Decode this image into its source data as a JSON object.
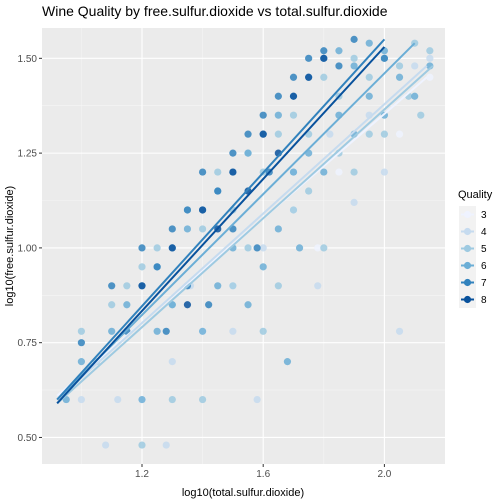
{
  "chart_data": {
    "type": "scatter",
    "title": "Wine Quality by free.sulfur.dioxide vs total.sulfur.dioxide",
    "xlabel": "log10(total.sulfur.dioxide)",
    "ylabel": "log10(free.sulfur.dioxide)",
    "xlim": [
      0.87,
      2.2
    ],
    "ylim": [
      0.43,
      1.58
    ],
    "x_ticks": [
      1.2,
      1.6,
      2.0
    ],
    "x_tick_labels": [
      "1.2",
      "1.6",
      "2.0"
    ],
    "y_ticks": [
      0.5,
      0.75,
      1.0,
      1.25,
      1.5
    ],
    "y_tick_labels": [
      "0.50",
      "0.75",
      "1.00",
      "1.25",
      "1.50"
    ],
    "grid": true,
    "legend": {
      "title": "Quality",
      "placement": "right",
      "entries": [
        "3",
        "4",
        "5",
        "6",
        "7",
        "8"
      ]
    },
    "series": [
      {
        "name": "3",
        "color": "#eff3ff",
        "points": [
          [
            1.2,
            0.6
          ],
          [
            1.5,
            0.9
          ],
          [
            1.7,
            1.1
          ],
          [
            1.85,
            1.2
          ],
          [
            2.05,
            1.3
          ],
          [
            2.15,
            1.45
          ],
          [
            1.78,
            1.0
          ],
          [
            1.4,
            0.78
          ]
        ],
        "trend": [
          [
            0.92,
            0.61
          ],
          [
            2.14,
            1.45
          ]
        ]
      },
      {
        "name": "4",
        "color": "#c6dbef",
        "points": [
          [
            1.0,
            0.6
          ],
          [
            1.08,
            0.48
          ],
          [
            1.12,
            0.6
          ],
          [
            1.3,
            0.7
          ],
          [
            1.36,
            0.9
          ],
          [
            1.5,
            0.78
          ],
          [
            1.6,
            1.0
          ],
          [
            1.7,
            1.2
          ],
          [
            1.78,
            0.9
          ],
          [
            1.82,
            1.3
          ],
          [
            1.9,
            1.12
          ],
          [
            1.95,
            1.35
          ],
          [
            2.0,
            1.2
          ],
          [
            2.05,
            0.78
          ],
          [
            2.1,
            1.48
          ],
          [
            2.15,
            1.5
          ],
          [
            1.58,
            0.6
          ],
          [
            1.28,
            0.48
          ]
        ],
        "trend": [
          [
            0.92,
            0.6
          ],
          [
            2.14,
            1.48
          ]
        ]
      },
      {
        "name": "5",
        "color": "#9ecae1",
        "points": [
          [
            1.0,
            0.78
          ],
          [
            1.05,
            0.7
          ],
          [
            1.1,
            0.85
          ],
          [
            1.15,
            0.9
          ],
          [
            1.2,
            0.95
          ],
          [
            1.25,
            1.0
          ],
          [
            1.3,
            0.85
          ],
          [
            1.35,
            1.1
          ],
          [
            1.4,
            1.05
          ],
          [
            1.45,
            1.2
          ],
          [
            1.5,
            1.1
          ],
          [
            1.55,
            1.25
          ],
          [
            1.6,
            1.2
          ],
          [
            1.65,
            1.3
          ],
          [
            1.7,
            1.35
          ],
          [
            1.75,
            1.3
          ],
          [
            1.8,
            1.45
          ],
          [
            1.85,
            1.4
          ],
          [
            1.9,
            1.5
          ],
          [
            1.95,
            1.45
          ],
          [
            2.0,
            1.5
          ],
          [
            2.05,
            1.48
          ],
          [
            2.1,
            1.54
          ],
          [
            2.15,
            1.52
          ],
          [
            1.2,
            0.48
          ],
          [
            1.4,
            0.6
          ],
          [
            1.6,
            0.78
          ],
          [
            1.8,
            1.0
          ],
          [
            2.0,
            1.3
          ],
          [
            1.5,
            0.9
          ],
          [
            1.7,
            1.1
          ],
          [
            1.9,
            1.2
          ],
          [
            2.08,
            1.4
          ],
          [
            2.12,
            1.35
          ],
          [
            1.3,
            0.6
          ],
          [
            1.55,
            1.0
          ],
          [
            1.65,
            0.9
          ],
          [
            1.75,
            1.15
          ],
          [
            1.85,
            1.25
          ],
          [
            1.95,
            1.3
          ]
        ],
        "trend": [
          [
            0.92,
            0.59
          ],
          [
            2.16,
            1.48
          ]
        ]
      },
      {
        "name": "6",
        "color": "#6baed6",
        "points": [
          [
            0.95,
            0.6
          ],
          [
            1.0,
            0.7
          ],
          [
            1.1,
            0.78
          ],
          [
            1.15,
            0.85
          ],
          [
            1.2,
            0.9
          ],
          [
            1.25,
            0.95
          ],
          [
            1.3,
            1.0
          ],
          [
            1.35,
            1.05
          ],
          [
            1.4,
            1.1
          ],
          [
            1.45,
            1.15
          ],
          [
            1.5,
            1.2
          ],
          [
            1.55,
            1.25
          ],
          [
            1.6,
            1.3
          ],
          [
            1.65,
            1.35
          ],
          [
            1.7,
            1.4
          ],
          [
            1.75,
            1.45
          ],
          [
            1.8,
            1.5
          ],
          [
            1.85,
            1.52
          ],
          [
            1.9,
            1.48
          ],
          [
            1.95,
            1.54
          ],
          [
            2.0,
            1.52
          ],
          [
            2.05,
            1.45
          ],
          [
            2.1,
            1.4
          ],
          [
            2.15,
            1.48
          ],
          [
            1.2,
            0.6
          ],
          [
            1.4,
            0.78
          ],
          [
            1.6,
            0.95
          ],
          [
            1.8,
            1.2
          ],
          [
            2.0,
            1.35
          ],
          [
            1.5,
            1.0
          ],
          [
            1.7,
            1.2
          ],
          [
            1.9,
            1.3
          ],
          [
            1.3,
            0.85
          ],
          [
            1.45,
            0.9
          ],
          [
            1.65,
            1.05
          ],
          [
            1.75,
            1.25
          ],
          [
            1.85,
            1.35
          ],
          [
            1.95,
            1.4
          ],
          [
            1.25,
            0.78
          ],
          [
            1.55,
            0.85
          ],
          [
            1.68,
            0.7
          ],
          [
            1.72,
            1.0
          ]
        ],
        "trend": [
          [
            0.92,
            0.6
          ],
          [
            2.1,
            1.54
          ]
        ]
      },
      {
        "name": "7",
        "color": "#3182bd",
        "points": [
          [
            1.0,
            0.75
          ],
          [
            1.1,
            0.9
          ],
          [
            1.15,
            0.78
          ],
          [
            1.2,
            1.0
          ],
          [
            1.25,
            0.95
          ],
          [
            1.3,
            1.05
          ],
          [
            1.35,
            1.1
          ],
          [
            1.4,
            1.2
          ],
          [
            1.45,
            1.15
          ],
          [
            1.5,
            1.25
          ],
          [
            1.55,
            1.3
          ],
          [
            1.6,
            1.35
          ],
          [
            1.65,
            1.4
          ],
          [
            1.7,
            1.45
          ],
          [
            1.75,
            1.5
          ],
          [
            1.8,
            1.52
          ],
          [
            1.85,
            1.48
          ],
          [
            1.9,
            1.55
          ],
          [
            2.0,
            1.5
          ],
          [
            1.35,
            0.9
          ],
          [
            1.5,
            1.05
          ],
          [
            1.62,
            1.2
          ],
          [
            1.42,
            0.85
          ],
          [
            1.28,
            0.78
          ],
          [
            1.58,
            1.0
          ]
        ],
        "trend": [
          [
            0.92,
            0.6
          ],
          [
            2.0,
            1.55
          ]
        ]
      },
      {
        "name": "8",
        "color": "#08519c",
        "points": [
          [
            1.2,
            0.9
          ],
          [
            1.3,
            1.0
          ],
          [
            1.4,
            1.1
          ],
          [
            1.5,
            1.2
          ],
          [
            1.6,
            1.3
          ],
          [
            1.7,
            1.4
          ],
          [
            1.8,
            1.5
          ],
          [
            1.45,
            1.05
          ],
          [
            1.55,
            1.15
          ],
          [
            1.35,
            0.85
          ],
          [
            1.75,
            1.45
          ],
          [
            1.65,
            1.25
          ]
        ],
        "trend": [
          [
            0.92,
            0.59
          ],
          [
            2.0,
            1.53
          ]
        ]
      }
    ]
  }
}
